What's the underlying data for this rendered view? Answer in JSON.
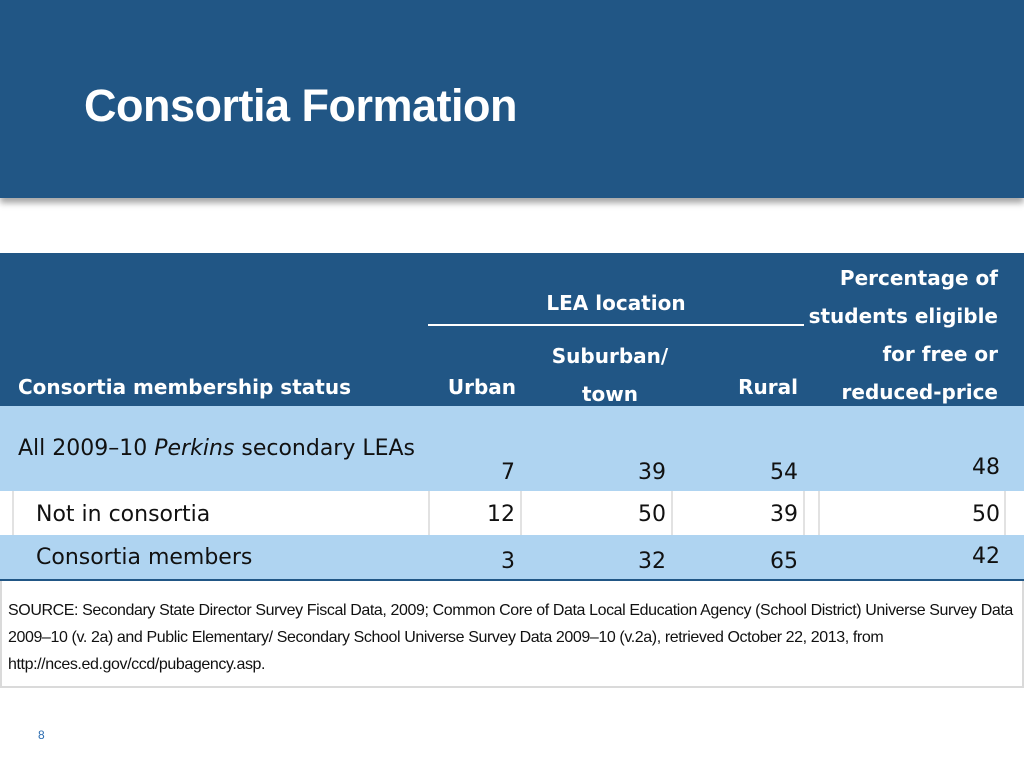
{
  "slide": {
    "title": "Consortia Formation",
    "page_number": "8"
  },
  "table": {
    "headers": {
      "status": "Consortia membership status",
      "lea_location": "LEA location",
      "urban": "Urban",
      "suburban_line1": "Suburban/",
      "suburban_line2": "town",
      "rural": "Rural",
      "pct_line1": "Percentage of",
      "pct_line2": "students eligible",
      "pct_line3": "for free or",
      "pct_line4": "reduced-price"
    },
    "rows": [
      {
        "label_pre": "All 2009–10 ",
        "label_italic": "Perkins",
        "label_post": " secondary LEAs",
        "urban": "7",
        "suburban": "39",
        "rural": "54",
        "pct": "48"
      },
      {
        "label": "Not in consortia",
        "urban": "12",
        "suburban": "50",
        "rural": "39",
        "pct": "50"
      },
      {
        "label": "Consortia members",
        "urban": "3",
        "suburban": "32",
        "rural": "65",
        "pct": "42"
      }
    ],
    "source": "SOURCE: Secondary State Director Survey Fiscal Data, 2009; Common Core of Data Local Education Agency (School District) Universe Survey Data 2009–10 (v. 2a) and Public Elementary/ Secondary School Universe Survey Data 2009–10 (v.2a), retrieved October 22, 2013, from http://nces.ed.gov/ccd/pubagency.asp."
  },
  "colors": {
    "header_blue": "#215685",
    "row_light_blue": "#afd4f1",
    "page_number_blue": "#2b6cb0"
  }
}
